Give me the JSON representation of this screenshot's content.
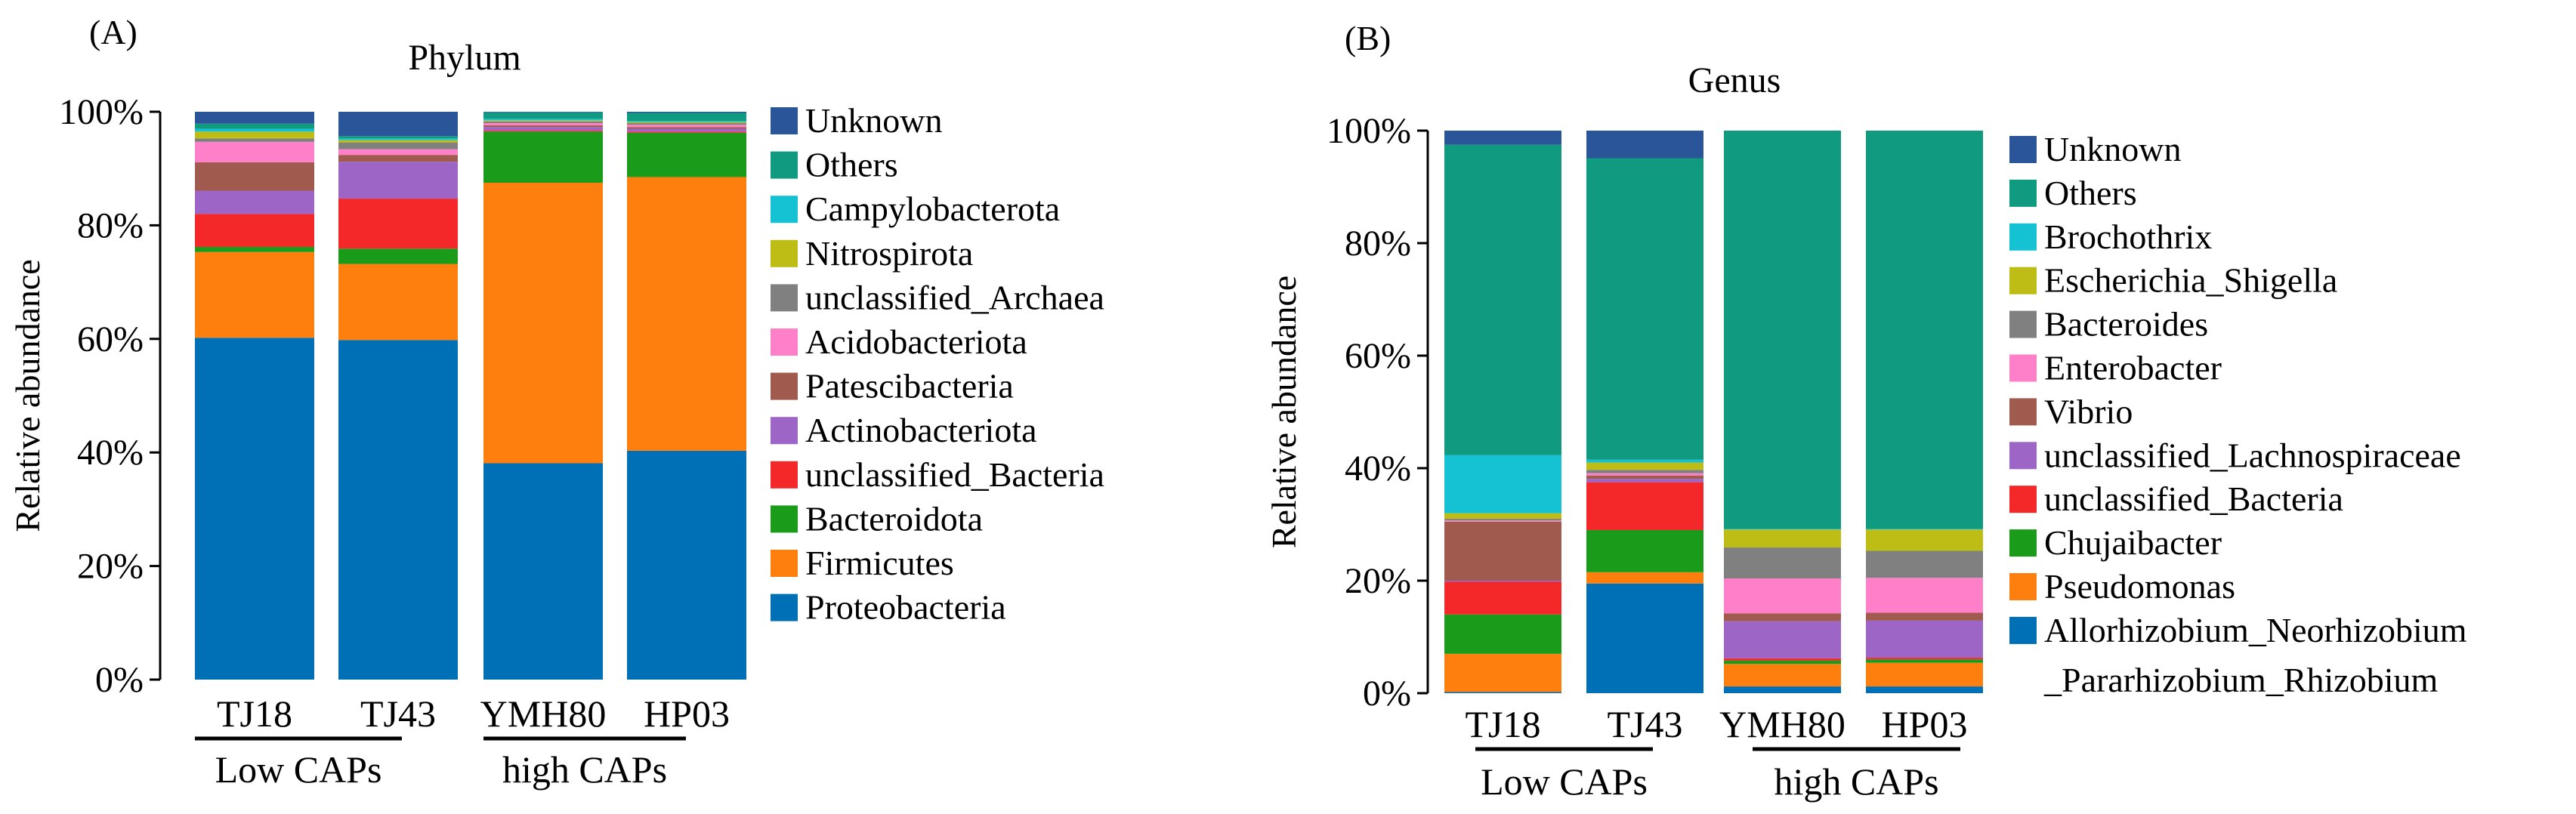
{
  "chart_data": [
    {
      "panel_label": "(A)",
      "type": "bar",
      "stacked": true,
      "title": "Phylum",
      "ylabel": "Relative abundance",
      "xlabel": "",
      "ylim": [
        0,
        100
      ],
      "y_ticks": [
        "0%",
        "20%",
        "40%",
        "60%",
        "80%",
        "100%"
      ],
      "categories": [
        "TJ18",
        "TJ43",
        "YMH80",
        "HP03"
      ],
      "groups": [
        {
          "label": "Low CAPs",
          "categories": [
            "TJ18",
            "TJ43"
          ]
        },
        {
          "label": "high CAPs",
          "categories": [
            "YMH80",
            "HP03"
          ]
        }
      ],
      "legend_position": "right",
      "series": [
        {
          "name": "Proteobacteria",
          "color": "#0070B6",
          "values": [
            60.2,
            59.8,
            38.1,
            40.3
          ]
        },
        {
          "name": "Firmicutes",
          "color": "#FF7F0E",
          "values": [
            15.1,
            13.4,
            49.4,
            48.2
          ]
        },
        {
          "name": "Bacteroidota",
          "color": "#1A9C1A",
          "values": [
            0.9,
            2.7,
            9.0,
            7.8
          ]
        },
        {
          "name": "unclassified_Bacteria",
          "color": "#F42828",
          "values": [
            5.8,
            8.8,
            0.2,
            0.2
          ]
        },
        {
          "name": "Actinobacteriota",
          "color": "#9C65C6",
          "values": [
            4.1,
            6.5,
            0.6,
            0.5
          ]
        },
        {
          "name": "Patescibacteria",
          "color": "#A05A4E",
          "values": [
            5.0,
            1.2,
            0.3,
            0.3
          ]
        },
        {
          "name": "Acidobacteriota",
          "color": "#FF7FC8",
          "values": [
            3.6,
            1.0,
            0.4,
            0.4
          ]
        },
        {
          "name": "unclassified_Archaea",
          "color": "#808080",
          "values": [
            0.6,
            1.2,
            0.3,
            0.3
          ]
        },
        {
          "name": "Nitrospirota",
          "color": "#BDBD16",
          "values": [
            1.2,
            0.4,
            0.2,
            0.2
          ]
        },
        {
          "name": "Campylobacterota",
          "color": "#14C2D4",
          "values": [
            0.5,
            0.3,
            0.3,
            0.2
          ]
        },
        {
          "name": "Others",
          "color": "#109B80",
          "values": [
            0.9,
            0.4,
            1.1,
            1.4
          ]
        },
        {
          "name": "Unknown",
          "color": "#2A5699",
          "values": [
            2.1,
            4.3,
            0.1,
            0.2
          ]
        }
      ]
    },
    {
      "panel_label": "(B)",
      "type": "bar",
      "stacked": true,
      "title": "Genus",
      "ylabel": "Relative abundance",
      "xlabel": "",
      "ylim": [
        0,
        100
      ],
      "y_ticks": [
        "0%",
        "20%",
        "40%",
        "60%",
        "80%",
        "100%"
      ],
      "categories": [
        "TJ18",
        "TJ43",
        "YMH80",
        "HP03"
      ],
      "groups": [
        {
          "label": "Low CAPs",
          "categories": [
            "TJ18",
            "TJ43"
          ]
        },
        {
          "label": "high CAPs",
          "categories": [
            "YMH80",
            "HP03"
          ]
        }
      ],
      "legend_position": "right",
      "series": [
        {
          "name": "Allorhizobium_Neorhizobium\n_Pararhizobium_Rhizobium",
          "color": "#0070B6",
          "values": [
            0.2,
            19.5,
            1.2,
            1.2
          ]
        },
        {
          "name": "Pseudomonas",
          "color": "#FF7F0E",
          "values": [
            6.8,
            2.0,
            4.0,
            4.2
          ]
        },
        {
          "name": "Chujaibacter",
          "color": "#1A9C1A",
          "values": [
            7.0,
            7.5,
            0.6,
            0.6
          ]
        },
        {
          "name": "unclassified_Bacteria",
          "color": "#F42828",
          "values": [
            5.8,
            8.5,
            0.4,
            0.3
          ]
        },
        {
          "name": "unclassified_Lachnospiraceae",
          "color": "#9C65C6",
          "values": [
            0.2,
            0.6,
            6.6,
            6.6
          ]
        },
        {
          "name": "Vibrio",
          "color": "#A05A4E",
          "values": [
            10.5,
            0.6,
            1.4,
            1.4
          ]
        },
        {
          "name": "Enterobacter",
          "color": "#FF7FC8",
          "values": [
            0.2,
            0.4,
            6.2,
            6.2
          ]
        },
        {
          "name": "Bacteroides",
          "color": "#808080",
          "values": [
            0.3,
            0.6,
            5.5,
            4.8
          ]
        },
        {
          "name": "Escherichia_Shigella",
          "color": "#BDBD16",
          "values": [
            1.0,
            1.3,
            3.2,
            3.8
          ]
        },
        {
          "name": "Brochothrix",
          "color": "#14C2D4",
          "values": [
            10.3,
            0.5,
            0.1,
            0.1
          ]
        },
        {
          "name": "Others",
          "color": "#109B80",
          "values": [
            55.2,
            53.6,
            70.8,
            70.8
          ]
        },
        {
          "name": "Unknown",
          "color": "#2A5699",
          "values": [
            2.5,
            4.9,
            0.0,
            0.0
          ]
        }
      ]
    }
  ]
}
